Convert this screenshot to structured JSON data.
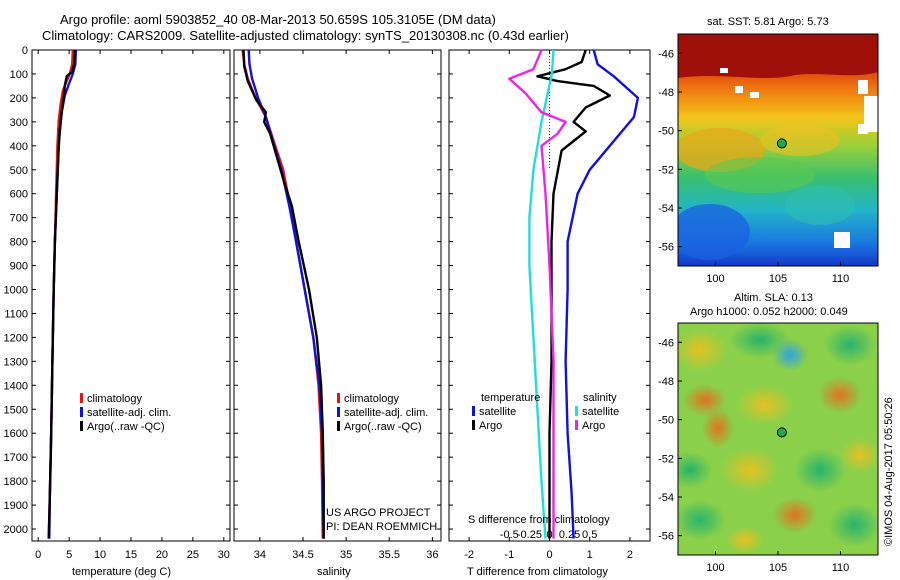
{
  "header": {
    "title_line1": "Argo profile: aoml 5903852_40 08-Mar-2013 50.659S 105.3105E (DM data)",
    "title_line2": "Climatology: CARS2009. Satellite-adjusted climatology: synTS_20130308.nc (0.43d earlier)"
  },
  "attribution": {
    "project": "US ARGO PROJECT",
    "pi": "PI: DEAN ROEMMICH",
    "stamp": "©IMOS 04-Aug-2017 05:50:26"
  },
  "colors": {
    "climatology": "#ee1111",
    "satellite": "#1111dd",
    "argo": "#000000",
    "sal_satellite": "#22dddd",
    "sal_argo": "#ee22ee"
  },
  "chart_data": [
    {
      "type": "line",
      "id": "temperature",
      "xlabel": "temperature (deg C)",
      "ylabel": "",
      "xlim": [
        -1,
        31
      ],
      "ylim": [
        2050,
        0
      ],
      "xticks": [
        0,
        5,
        10,
        15,
        20,
        25,
        30
      ],
      "yticks": [
        0,
        100,
        200,
        300,
        400,
        500,
        600,
        700,
        800,
        900,
        1000,
        1100,
        1200,
        1300,
        1400,
        1500,
        1600,
        1700,
        1800,
        1900,
        2000
      ],
      "legend": [
        "climatology",
        "satellite-adj. clim.",
        "Argo(..raw -QC)"
      ],
      "series": [
        {
          "name": "climatology",
          "color": "#ee1111",
          "points": [
            [
              5.6,
              0
            ],
            [
              5.5,
              60
            ],
            [
              5.1,
              100
            ],
            [
              4.6,
              130
            ],
            [
              4.0,
              170
            ],
            [
              3.6,
              230
            ],
            [
              3.3,
              300
            ],
            [
              3.1,
              400
            ],
            [
              2.9,
              600
            ],
            [
              2.7,
              800
            ],
            [
              2.5,
              1000
            ],
            [
              2.3,
              1300
            ],
            [
              2.1,
              1600
            ],
            [
              1.9,
              1850
            ],
            [
              1.7,
              2040
            ]
          ]
        },
        {
          "name": "satellite-adj. clim.",
          "color": "#1111dd",
          "points": [
            [
              6.1,
              0
            ],
            [
              6.0,
              60
            ],
            [
              5.6,
              100
            ],
            [
              5.0,
              140
            ],
            [
              4.3,
              190
            ],
            [
              3.8,
              260
            ],
            [
              3.3,
              400
            ],
            [
              3.0,
              600
            ],
            [
              2.7,
              800
            ],
            [
              2.5,
              1000
            ],
            [
              2.3,
              1300
            ],
            [
              2.1,
              1600
            ],
            [
              1.9,
              1850
            ],
            [
              1.8,
              2040
            ]
          ]
        },
        {
          "name": "Argo(..raw -QC)",
          "color": "#000000",
          "points": [
            [
              5.9,
              0
            ],
            [
              5.8,
              60
            ],
            [
              5.5,
              90
            ],
            [
              4.6,
              110
            ],
            [
              4.3,
              150
            ],
            [
              4.1,
              200
            ],
            [
              3.8,
              260
            ],
            [
              3.5,
              330
            ],
            [
              3.3,
              420
            ],
            [
              3.0,
              600
            ],
            [
              2.7,
              800
            ],
            [
              2.5,
              1000
            ],
            [
              2.3,
              1300
            ],
            [
              2.1,
              1600
            ],
            [
              1.9,
              1850
            ],
            [
              1.7,
              2040
            ]
          ]
        }
      ]
    },
    {
      "type": "line",
      "id": "salinity",
      "xlabel": "salinity",
      "ylabel": "",
      "xlim": [
        33.7,
        36.1
      ],
      "ylim": [
        2050,
        0
      ],
      "xticks": [
        34,
        34.5,
        35,
        35.5,
        36
      ],
      "legend": [
        "climatology",
        "satellite-adj. clim.",
        "Argo(..raw -QC)"
      ],
      "series": [
        {
          "name": "climatology",
          "color": "#ee1111",
          "points": [
            [
              33.8,
              0
            ],
            [
              33.82,
              60
            ],
            [
              33.86,
              120
            ],
            [
              33.95,
              200
            ],
            [
              34.07,
              280
            ],
            [
              34.16,
              380
            ],
            [
              34.27,
              500
            ],
            [
              34.35,
              650
            ],
            [
              34.42,
              800
            ],
            [
              34.52,
              1000
            ],
            [
              34.62,
              1200
            ],
            [
              34.68,
              1400
            ],
            [
              34.71,
              1600
            ],
            [
              34.72,
              1800
            ],
            [
              34.73,
              2040
            ]
          ]
        },
        {
          "name": "satellite-adj. clim.",
          "color": "#1111dd",
          "points": [
            [
              33.87,
              0
            ],
            [
              33.88,
              60
            ],
            [
              33.91,
              120
            ],
            [
              33.98,
              200
            ],
            [
              34.07,
              280
            ],
            [
              34.15,
              380
            ],
            [
              34.25,
              500
            ],
            [
              34.34,
              650
            ],
            [
              34.42,
              800
            ],
            [
              34.52,
              1000
            ],
            [
              34.62,
              1200
            ],
            [
              34.69,
              1400
            ],
            [
              34.72,
              1600
            ],
            [
              34.73,
              1800
            ],
            [
              34.74,
              2040
            ]
          ]
        },
        {
          "name": "Argo(..raw -QC)",
          "color": "#000000",
          "points": [
            [
              33.81,
              0
            ],
            [
              33.82,
              70
            ],
            [
              33.86,
              130
            ],
            [
              33.96,
              210
            ],
            [
              34.07,
              260
            ],
            [
              34.05,
              300
            ],
            [
              34.12,
              350
            ],
            [
              34.2,
              450
            ],
            [
              34.28,
              550
            ],
            [
              34.37,
              650
            ],
            [
              34.45,
              800
            ],
            [
              34.57,
              1000
            ],
            [
              34.66,
              1200
            ],
            [
              34.71,
              1400
            ],
            [
              34.73,
              1600
            ],
            [
              34.74,
              1800
            ],
            [
              34.74,
              2040
            ]
          ]
        }
      ]
    },
    {
      "type": "line",
      "id": "difference",
      "xlabel": "T difference from climatology",
      "xlabel_top": "S difference from climatology",
      "xlim": [
        -2.5,
        2.5
      ],
      "ylim": [
        2050,
        0
      ],
      "xticks": [
        -2,
        -1,
        0,
        1,
        2
      ],
      "xticks_s": [
        -0.5,
        -0.25,
        0,
        0.25,
        0.5
      ],
      "legend_headers": [
        "temperature",
        "salinity"
      ],
      "legend": [
        "satellite",
        "Argo",
        "satellite",
        "Argo"
      ],
      "series": [
        {
          "name": "T satellite",
          "color": "#1111dd",
          "points": [
            [
              1.1,
              0
            ],
            [
              1.2,
              60
            ],
            [
              1.6,
              110
            ],
            [
              2.2,
              200
            ],
            [
              2.1,
              280
            ],
            [
              1.5,
              400
            ],
            [
              1.0,
              500
            ],
            [
              0.7,
              600
            ],
            [
              0.45,
              800
            ],
            [
              0.45,
              1000
            ],
            [
              0.4,
              1300
            ],
            [
              0.45,
              1600
            ],
            [
              0.55,
              1850
            ],
            [
              0.6,
              2040
            ]
          ]
        },
        {
          "name": "T Argo",
          "color": "#000000",
          "points": [
            [
              0.9,
              0
            ],
            [
              0.8,
              50
            ],
            [
              0.4,
              80
            ],
            [
              -0.3,
              110
            ],
            [
              0.2,
              130
            ],
            [
              1.1,
              150
            ],
            [
              1.5,
              190
            ],
            [
              0.9,
              240
            ],
            [
              0.6,
              300
            ],
            [
              0.9,
              340
            ],
            [
              0.6,
              380
            ],
            [
              0.3,
              420
            ],
            [
              0.1,
              600
            ],
            [
              0.05,
              800
            ],
            [
              0.05,
              1000
            ],
            [
              0.05,
              1300
            ],
            [
              0.0,
              1600
            ],
            [
              0.0,
              1850
            ],
            [
              0.0,
              2040
            ]
          ]
        },
        {
          "name": "S satellite",
          "color": "#22dddd",
          "points": [
            [
              0.05,
              0
            ],
            [
              0.03,
              100
            ],
            [
              -0.1,
              300
            ],
            [
              -0.2,
              500
            ],
            [
              -0.25,
              700
            ],
            [
              -0.25,
              900
            ],
            [
              -0.2,
              1200
            ],
            [
              -0.15,
              1500
            ],
            [
              -0.1,
              1800
            ],
            [
              -0.05,
              2040
            ]
          ]
        },
        {
          "name": "S Argo",
          "color": "#ee22ee",
          "points": [
            [
              -0.1,
              0
            ],
            [
              -0.2,
              80
            ],
            [
              -0.5,
              120
            ],
            [
              -0.3,
              180
            ],
            [
              -0.1,
              260
            ],
            [
              0.2,
              300
            ],
            [
              0.1,
              350
            ],
            [
              -0.1,
              400
            ],
            [
              -0.05,
              600
            ],
            [
              0.0,
              900
            ],
            [
              0.05,
              1300
            ],
            [
              0.05,
              1700
            ],
            [
              0.05,
              2040
            ]
          ]
        }
      ]
    }
  ],
  "maps": {
    "sst": {
      "title": "sat. SST: 5.81  Argo: 5.73",
      "xticks": [
        "100",
        "105",
        "110"
      ],
      "yticks": [
        "-46",
        "-48",
        "-50",
        "-52",
        "-54",
        "-56"
      ],
      "xlim": [
        97,
        113
      ],
      "ylim": [
        -57,
        -45
      ],
      "marker_lon": 105.31,
      "marker_lat": -50.66
    },
    "sla": {
      "title_line1": "Altim. SLA: 0.13",
      "title_line2": "Argo h1000: 0.052 h2000: 0.049",
      "xticks": [
        "100",
        "105",
        "110"
      ],
      "yticks": [
        "-46",
        "-48",
        "-50",
        "-52",
        "-54",
        "-56"
      ],
      "xlim": [
        97,
        113
      ],
      "ylim": [
        -57,
        -45
      ],
      "marker_lon": 105.31,
      "marker_lat": -50.66
    }
  }
}
